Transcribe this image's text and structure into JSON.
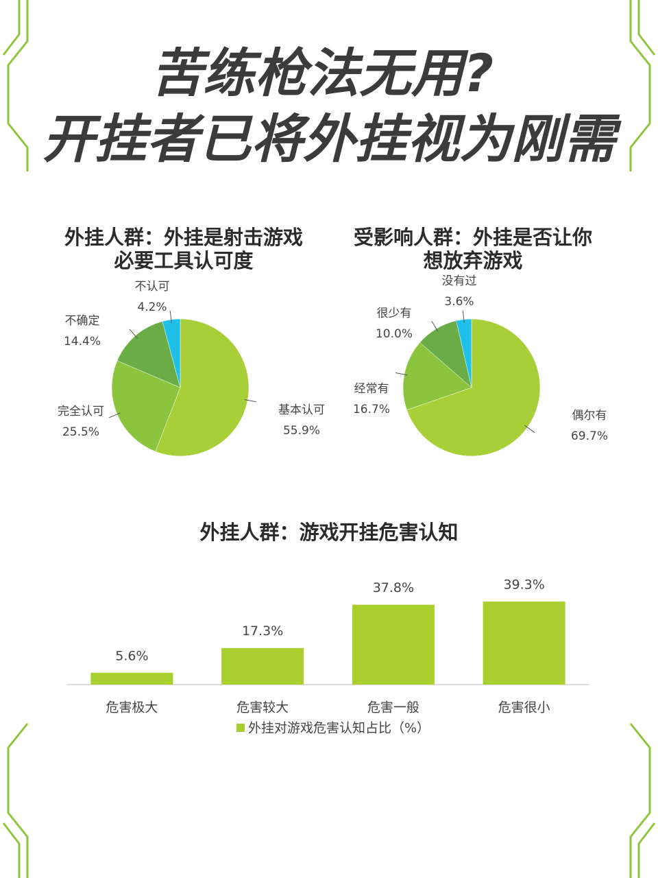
{
  "header": {
    "title": [
      "苦练枪法无用?",
      "开挂者已将外挂视为刚需"
    ]
  },
  "chart_data": [
    {
      "type": "pie",
      "title": [
        "外挂人群：外挂是射击游戏",
        "必要工具认可度"
      ],
      "categories": [
        "基本认可",
        "完全认可",
        "不确定",
        "不认可"
      ],
      "values": [
        55.9,
        25.5,
        14.4,
        4.2
      ],
      "value_labels": [
        "55.9%",
        "25.5%",
        "14.4%",
        "4.2%"
      ],
      "colors": [
        "#a9cf38",
        "#8cc43e",
        "#6aac45",
        "#1fc1ea"
      ]
    },
    {
      "type": "pie",
      "title": [
        "受影响人群：外挂是否让你",
        "想放弃游戏"
      ],
      "categories": [
        "偶尔有",
        "经常有",
        "很少有",
        "没有过"
      ],
      "values": [
        69.7,
        16.7,
        10.0,
        3.6
      ],
      "value_labels": [
        "69.7%",
        "16.7%",
        "10.0%",
        "3.6%"
      ],
      "colors": [
        "#a9cf38",
        "#8cc43e",
        "#6aac45",
        "#1fc1ea"
      ]
    },
    {
      "type": "bar",
      "title": "外挂人群：游戏开挂危害认知",
      "categories": [
        "危害极大",
        "危害较大",
        "危害一般",
        "危害很小"
      ],
      "series": [
        {
          "name": "外挂对游戏危害认知占比（%）",
          "color": "#a8cf2e",
          "values": [
            5.6,
            17.3,
            37.8,
            39.3
          ],
          "value_labels": [
            "5.6%",
            "17.3%",
            "37.8%",
            "39.3%"
          ]
        }
      ]
    }
  ]
}
